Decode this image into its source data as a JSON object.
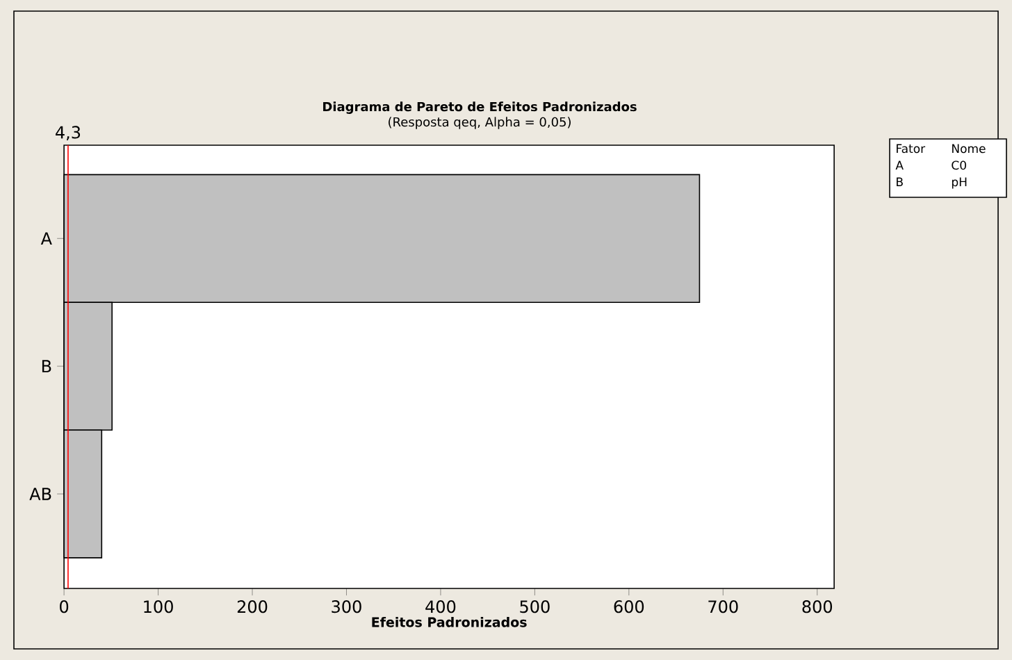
{
  "chart_data": {
    "type": "bar",
    "orientation": "horizontal",
    "title": "Diagrama de Pareto de Efeitos Padronizados",
    "subtitle": "(Resposta qeq, Alpha = 0,05)",
    "xlabel": "Efeitos Padronizados",
    "categories": [
      "A",
      "B",
      "AB"
    ],
    "values": [
      675,
      51,
      40
    ],
    "color": "#c0c0c0",
    "xlim": [
      0,
      818
    ],
    "xticks": [
      0,
      100,
      200,
      300,
      400,
      500,
      600,
      700,
      800
    ],
    "ref_lines": [
      {
        "axis": "x",
        "value": 4.3,
        "label": "4,3",
        "color": "#ff0000"
      }
    ],
    "annotations": [
      "Fator",
      "Nome",
      "A",
      "C0",
      "B",
      "pH"
    ],
    "grid": false
  }
}
